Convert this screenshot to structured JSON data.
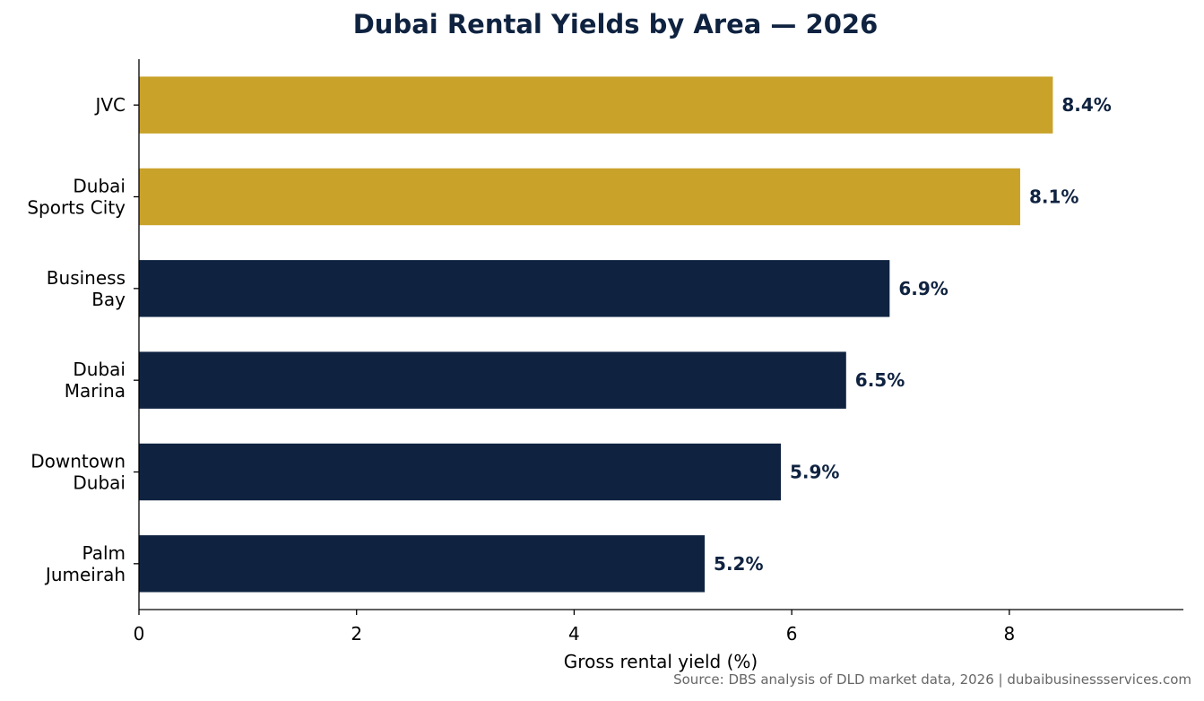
{
  "chart_data": {
    "type": "bar",
    "orientation": "horizontal",
    "title": "Dubai Rental Yields by Area — 2026",
    "xlabel": "Gross rental yield (%)",
    "ylabel": "",
    "xlim": [
      0,
      9.6
    ],
    "xticks": [
      0,
      2,
      4,
      6,
      8
    ],
    "categories": [
      [
        "JVC"
      ],
      [
        "Dubai",
        "Sports City"
      ],
      [
        "Business",
        "Bay"
      ],
      [
        "Dubai",
        "Marina"
      ],
      [
        "Downtown",
        "Dubai"
      ],
      [
        "Palm",
        "Jumeirah"
      ]
    ],
    "values": [
      8.4,
      8.1,
      6.9,
      6.5,
      5.9,
      5.2
    ],
    "value_labels": [
      "8.4%",
      "8.1%",
      "6.9%",
      "6.5%",
      "5.9%",
      "5.2%"
    ],
    "bar_colors": [
      "#c9a22a",
      "#c9a22a",
      "#0f2340",
      "#0f2340",
      "#0f2340",
      "#0f2340"
    ],
    "label_color": "#0f2340",
    "grid": false,
    "legend": "none",
    "source": "Source: DBS analysis of DLD market data, 2026 | dubaibusinessservices.com"
  }
}
